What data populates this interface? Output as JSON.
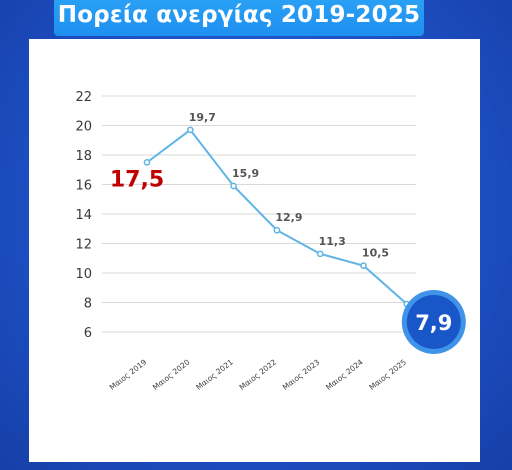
{
  "title": "Πορεία ανεργίας 2019-2025",
  "colors": {
    "line": "#5fb4e6",
    "highlight_start": "#c00000",
    "badge_fill": "#1957c9",
    "badge_ring": "#3f93e8",
    "grid": "#d9d9d9",
    "text": "#3a3a3a"
  },
  "chart_data": {
    "type": "line",
    "title": "Πορεία ανεργίας 2019-2025",
    "categories": [
      "Μαιος 2019",
      "Μαιος 2020",
      "Μαιος 2021",
      "Μαιος 2022",
      "Μαιος 2023",
      "Μαιος 2024",
      "Μαιος 2025"
    ],
    "values": [
      17.5,
      19.7,
      15.9,
      12.9,
      11.3,
      10.5,
      7.9
    ],
    "data_labels": [
      "17,5",
      "19,7",
      "15,9",
      "12,9",
      "11,3",
      "10,5",
      "7,9"
    ],
    "y_ticks": [
      "6",
      "8",
      "10",
      "12",
      "14",
      "16",
      "18",
      "20",
      "22"
    ],
    "ylim": [
      6,
      22
    ],
    "grid": true,
    "xlabel": "",
    "ylabel": ""
  }
}
